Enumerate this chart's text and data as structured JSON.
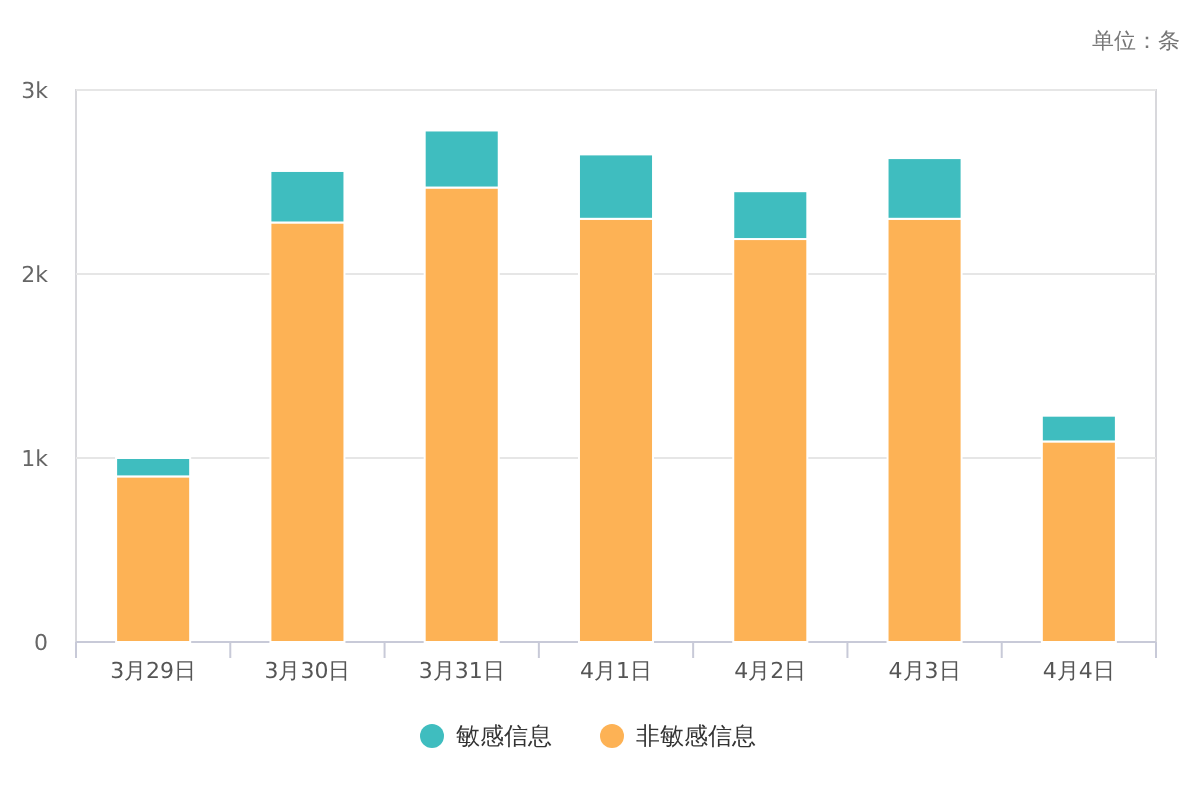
{
  "chart_data": {
    "type": "bar",
    "stacked": true,
    "categories": [
      "3月29日",
      "3月30日",
      "3月31日",
      "4月1日",
      "4月2日",
      "4月3日",
      "4月4日"
    ],
    "series": [
      {
        "name": "非敏感信息",
        "color": "#fdb255",
        "values": [
          900,
          2280,
          2470,
          2300,
          2190,
          2300,
          1090
        ]
      },
      {
        "name": "敏感信息",
        "color": "#3fbdbf",
        "values": [
          100,
          280,
          310,
          350,
          260,
          330,
          140
        ]
      }
    ],
    "ylim": [
      0,
      3000
    ],
    "yticks": [
      {
        "value": 0,
        "label": "0"
      },
      {
        "value": 1000,
        "label": "1k"
      },
      {
        "value": 2000,
        "label": "2k"
      },
      {
        "value": 3000,
        "label": "3k"
      }
    ],
    "grid": "y",
    "legend": "bottom",
    "annotations": [
      "单位：条"
    ]
  }
}
